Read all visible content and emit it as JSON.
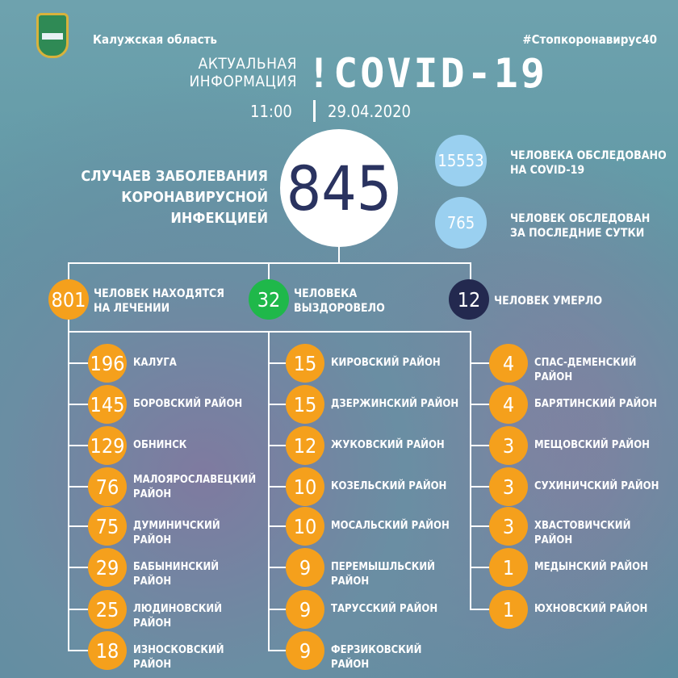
{
  "header": {
    "region": "Калужская область",
    "hashtag": "#Стопкоронавирус40",
    "subtitle_1": "АКТУАЛЬНАЯ",
    "subtitle_2": "ИНФОРМАЦИЯ",
    "title": "!COVID-19",
    "time": "11:00",
    "date": "29.04.2020"
  },
  "cases": {
    "label_1": "СЛУЧАЕВ ЗАБОЛЕВАНИЯ",
    "label_2": "КОРОНАВИРУСНОЙ ИНФЕКЦИЕЙ",
    "value": "845"
  },
  "tests": [
    {
      "value": "15553",
      "label_1": "ЧЕЛОВЕКА ОБСЛЕДОВАНО",
      "label_2": "НА COVID-19"
    },
    {
      "value": "765",
      "label_1": "ЧЕЛОВЕК ОБСЛЕДОВАН",
      "label_2": "ЗА ПОСЛЕДНИЕ СУТКИ"
    }
  ],
  "status": [
    {
      "value": "801",
      "label_1": "ЧЕЛОВЕК НАХОДЯТСЯ",
      "label_2": "НА ЛЕЧЕНИИ",
      "color": "#f5a01c"
    },
    {
      "value": "32",
      "label_1": "ЧЕЛОВЕКА",
      "label_2": "ВЫЗДОРОВЕЛО",
      "color": "#1fb84a"
    },
    {
      "value": "12",
      "label_1": "ЧЕЛОВЕК УМЕРЛО",
      "label_2": "",
      "color": "#23294f"
    }
  ],
  "districts": [
    [
      {
        "value": "196",
        "name": "КАЛУГА"
      },
      {
        "value": "145",
        "name": "БОРОВСКИЙ РАЙОН"
      },
      {
        "value": "129",
        "name": "ОБНИНСК"
      },
      {
        "value": "76",
        "name": "МАЛОЯРОСЛАВЕЦКИЙ РАЙОН"
      },
      {
        "value": "75",
        "name": "ДУМИНИЧСКИЙ РАЙОН"
      },
      {
        "value": "29",
        "name": "БАБЫНИНСКИЙ РАЙОН"
      },
      {
        "value": "25",
        "name": "ЛЮДИНОВСКИЙ РАЙОН"
      },
      {
        "value": "18",
        "name": "ИЗНОСКОВСКИЙ РАЙОН"
      }
    ],
    [
      {
        "value": "15",
        "name": "КИРОВСКИЙ РАЙОН"
      },
      {
        "value": "15",
        "name": "ДЗЕРЖИНСКИЙ РАЙОН"
      },
      {
        "value": "12",
        "name": "ЖУКОВСКИЙ РАЙОН"
      },
      {
        "value": "10",
        "name": "КОЗЕЛЬСКИЙ РАЙОН"
      },
      {
        "value": "10",
        "name": "МОСАЛЬСКИЙ РАЙОН"
      },
      {
        "value": "9",
        "name": "ПЕРЕМЫШЛЬСКИЙ РАЙОН"
      },
      {
        "value": "9",
        "name": "ТАРУССКИЙ РАЙОН"
      },
      {
        "value": "9",
        "name": "ФЕРЗИКОВСКИЙ РАЙОН"
      }
    ],
    [
      {
        "value": "4",
        "name": "СПАС-ДЕМЕНСКИЙ РАЙОН"
      },
      {
        "value": "4",
        "name": "БАРЯТИНСКИЙ РАЙОН"
      },
      {
        "value": "3",
        "name": "МЕЩОВСКИЙ РАЙОН"
      },
      {
        "value": "3",
        "name": "СУХИНИЧСКИЙ РАЙОН"
      },
      {
        "value": "3",
        "name": "ХВАСТОВИЧСКИЙ РАЙОН"
      },
      {
        "value": "1",
        "name": "МЕДЫНСКИЙ РАЙОН"
      },
      {
        "value": "1",
        "name": "ЮХНОВСКИЙ РАЙОН"
      }
    ]
  ],
  "colors": {
    "accent": "#f5a01c",
    "test_circle": "#9ad0f0",
    "number_dark": "#2a3360"
  }
}
